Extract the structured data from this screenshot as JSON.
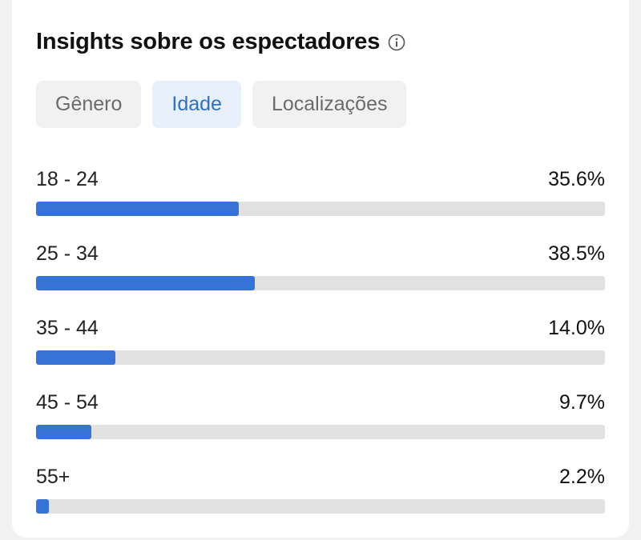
{
  "header": {
    "title": "Insights sobre os espectadores",
    "info_icon": "info-icon"
  },
  "tabs": [
    {
      "label": "Gênero",
      "active": false
    },
    {
      "label": "Idade",
      "active": true
    },
    {
      "label": "Localizações",
      "active": false
    }
  ],
  "age_breakdown": [
    {
      "label": "18 - 24",
      "value_text": "35.6%",
      "percent": 35.6
    },
    {
      "label": "25 - 34",
      "value_text": "38.5%",
      "percent": 38.5
    },
    {
      "label": "35 - 44",
      "value_text": "14.0%",
      "percent": 14.0
    },
    {
      "label": "45 - 54",
      "value_text": "9.7%",
      "percent": 9.7
    },
    {
      "label": "55+",
      "value_text": "2.2%",
      "percent": 2.2
    }
  ],
  "colors": {
    "accent": "#3574d6",
    "active_tab_bg": "#e7f0fa",
    "active_tab_text": "#2f6fc4",
    "track": "#e1e1e1"
  }
}
